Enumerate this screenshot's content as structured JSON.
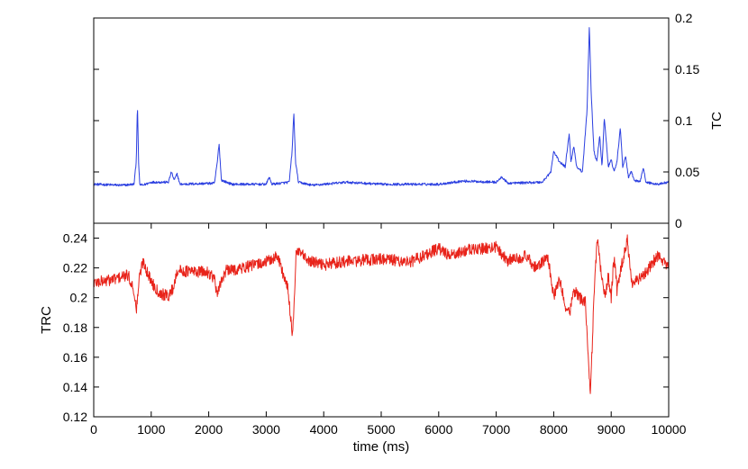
{
  "chart_data": [
    {
      "type": "line",
      "panel": "top",
      "ylabel": "TC",
      "y_axis_side": "right",
      "xlim": [
        0,
        10000
      ],
      "ylim": [
        0,
        0.2
      ],
      "y_ticks": [
        0,
        0.05,
        0.1,
        0.15,
        0.2
      ],
      "y_tick_labels": [
        "0",
        "0.05",
        "0.1",
        "0.15",
        "0.2"
      ],
      "grid": false,
      "series": [
        {
          "color": "#2b3fe0",
          "noise_amplitude": 0.0012,
          "x": [
            0,
            500,
            700,
            740,
            760,
            780,
            800,
            850,
            1000,
            1300,
            1350,
            1400,
            1450,
            1500,
            2100,
            2150,
            2180,
            2220,
            2400,
            3000,
            3050,
            3100,
            3400,
            3450,
            3480,
            3510,
            3560,
            3800,
            4400,
            5000,
            6000,
            6400,
            6500,
            7000,
            7100,
            7200,
            7800,
            7950,
            8000,
            8100,
            8200,
            8270,
            8300,
            8350,
            8400,
            8500,
            8580,
            8620,
            8650,
            8700,
            8750,
            8800,
            8840,
            8880,
            8950,
            9000,
            9050,
            9100,
            9160,
            9200,
            9250,
            9300,
            9350,
            9400,
            9500,
            9560,
            9600,
            9800,
            10000
          ],
          "y": [
            0.038,
            0.037,
            0.038,
            0.06,
            0.117,
            0.06,
            0.038,
            0.037,
            0.04,
            0.04,
            0.05,
            0.042,
            0.048,
            0.038,
            0.039,
            0.06,
            0.078,
            0.042,
            0.038,
            0.038,
            0.045,
            0.038,
            0.04,
            0.07,
            0.108,
            0.06,
            0.04,
            0.037,
            0.04,
            0.038,
            0.038,
            0.041,
            0.041,
            0.04,
            0.045,
            0.039,
            0.04,
            0.05,
            0.07,
            0.06,
            0.055,
            0.088,
            0.06,
            0.075,
            0.055,
            0.05,
            0.11,
            0.193,
            0.13,
            0.07,
            0.06,
            0.085,
            0.055,
            0.103,
            0.055,
            0.062,
            0.05,
            0.06,
            0.093,
            0.055,
            0.065,
            0.045,
            0.05,
            0.042,
            0.04,
            0.055,
            0.04,
            0.038,
            0.04
          ]
        }
      ]
    },
    {
      "type": "line",
      "panel": "bottom",
      "xlabel": "time (ms)",
      "ylabel": "TRC",
      "xlim": [
        0,
        10000
      ],
      "ylim": [
        0.12,
        0.25
      ],
      "x_ticks": [
        0,
        1000,
        2000,
        3000,
        4000,
        5000,
        6000,
        7000,
        8000,
        9000,
        10000
      ],
      "x_tick_labels": [
        "0",
        "1000",
        "2000",
        "3000",
        "4000",
        "5000",
        "6000",
        "7000",
        "8000",
        "9000",
        "10000"
      ],
      "y_ticks": [
        0.12,
        0.14,
        0.16,
        0.18,
        0.2,
        0.22,
        0.24
      ],
      "y_tick_labels": [
        "0.12",
        "0.14",
        "0.16",
        "0.18",
        "0.2",
        "0.22",
        "0.24"
      ],
      "grid": false,
      "series": [
        {
          "color": "#e8231a",
          "noise_amplitude": 0.004,
          "x": [
            0,
            300,
            600,
            700,
            740,
            760,
            800,
            860,
            950,
            1050,
            1150,
            1300,
            1400,
            1440,
            1500,
            2000,
            2100,
            2150,
            2200,
            2300,
            2600,
            3000,
            3200,
            3380,
            3450,
            3480,
            3520,
            3600,
            3700,
            4000,
            4300,
            5000,
            5500,
            6000,
            6200,
            6500,
            7000,
            7200,
            7500,
            7700,
            7900,
            8000,
            8100,
            8200,
            8280,
            8350,
            8450,
            8550,
            8600,
            8640,
            8700,
            8760,
            8800,
            8850,
            8900,
            8950,
            9000,
            9050,
            9100,
            9200,
            9280,
            9350,
            9500,
            9700,
            9800,
            10000
          ],
          "y": [
            0.21,
            0.212,
            0.215,
            0.205,
            0.19,
            0.2,
            0.215,
            0.225,
            0.215,
            0.208,
            0.203,
            0.201,
            0.208,
            0.218,
            0.218,
            0.217,
            0.213,
            0.2,
            0.21,
            0.218,
            0.22,
            0.224,
            0.228,
            0.205,
            0.176,
            0.19,
            0.23,
            0.23,
            0.225,
            0.222,
            0.224,
            0.226,
            0.224,
            0.233,
            0.228,
            0.232,
            0.234,
            0.225,
            0.228,
            0.22,
            0.227,
            0.2,
            0.212,
            0.195,
            0.19,
            0.205,
            0.2,
            0.198,
            0.16,
            0.136,
            0.2,
            0.243,
            0.225,
            0.21,
            0.2,
            0.215,
            0.2,
            0.228,
            0.205,
            0.225,
            0.24,
            0.21,
            0.213,
            0.222,
            0.228,
            0.22
          ]
        }
      ]
    }
  ]
}
